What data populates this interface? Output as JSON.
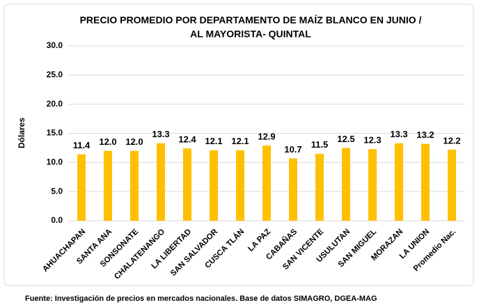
{
  "chart_data": {
    "type": "bar",
    "title": [
      "PRECIO PROMEDIO POR DEPARTAMENTO DE MAÍZ BLANCO EN  JUNIO /",
      "AL MAYORISTA- QUINTAL"
    ],
    "y_label": "Dólares",
    "source": "Fuente: Investigación de precios en mercados nacionales. Base de datos SIMAGRO, DGEA-MAG",
    "categories": [
      "AHUACHAPAN",
      "SANTA ANA",
      "SONSONATE",
      "CHALATENANGO",
      "LA LIBERTAD",
      "SAN SALVADOR",
      "CUSCA TLÁN",
      "LA PAZ",
      "CABAÑAS",
      "SAN VICENTE",
      "USULUTAN",
      "SAN MIGUEL",
      "MORAZAN",
      "LA UNION",
      "Promedio Nac."
    ],
    "values": [
      11.4,
      12.0,
      12.0,
      13.3,
      12.4,
      12.1,
      12.1,
      12.9,
      10.7,
      11.5,
      12.5,
      12.3,
      13.3,
      13.2,
      12.2
    ],
    "value_labels": [
      "11.4",
      "12.0",
      "12.0",
      "13.3",
      "12.4",
      "12.1",
      "12.1",
      "12.9",
      "10.7",
      "11.5",
      "12.5",
      "12.3",
      "13.3",
      "13.2",
      "12.2"
    ],
    "color": "#ffc000",
    "ylim": [
      0,
      30
    ],
    "yticks": [
      {
        "value": 0,
        "label": "0.0"
      },
      {
        "value": 5,
        "label": "5.0"
      },
      {
        "value": 10,
        "label": "10.0"
      },
      {
        "value": 15,
        "label": "15.0"
      },
      {
        "value": 20,
        "label": "20.0"
      },
      {
        "value": 25,
        "label": "25.0"
      },
      {
        "value": 30,
        "label": "30.0"
      }
    ],
    "grid": true
  }
}
